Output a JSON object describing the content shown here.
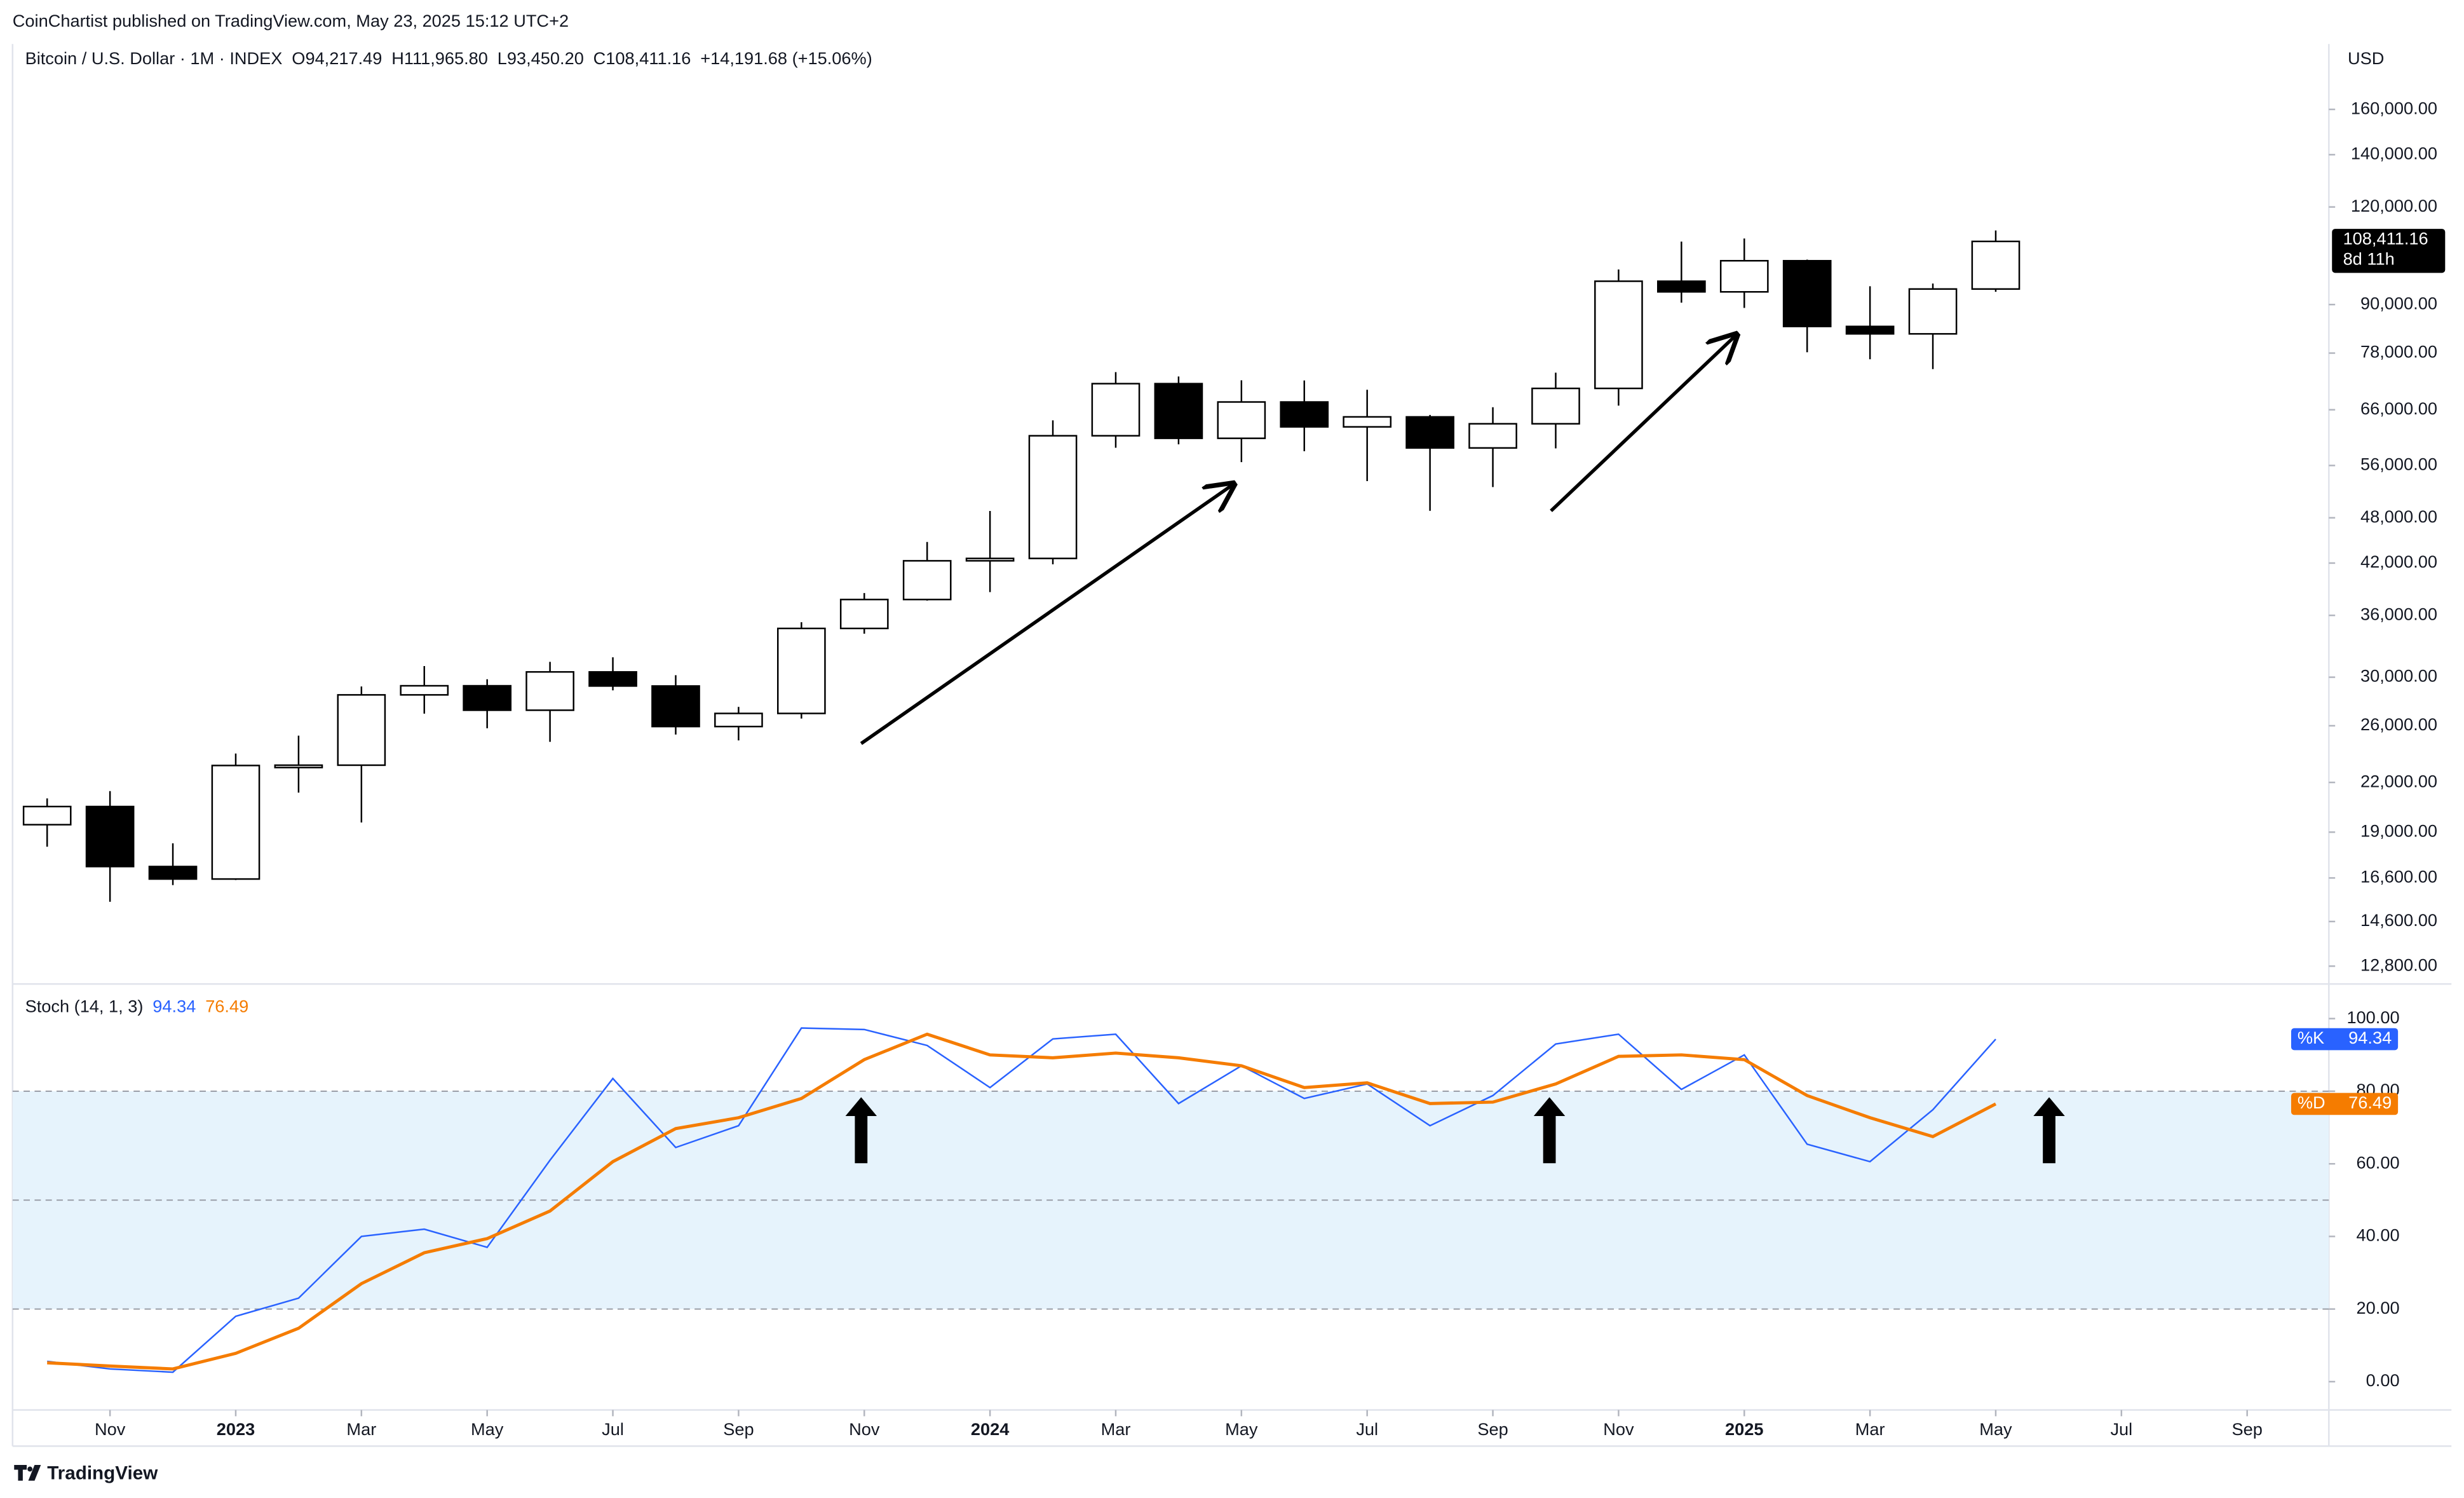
{
  "header": {
    "publisher": "CoinChartist published on TradingView.com, May 23, 2025 15:12 UTC+2",
    "symbol": "Bitcoin / U.S. Dollar · 1M · INDEX",
    "ohlc": [
      "O94,217.49",
      "H111,965.80",
      "L93,450.20",
      "C108,411.16",
      "+14,191.68 (+15.06%)"
    ],
    "currency": "USD",
    "brand": "TradingView"
  },
  "chart_data": [
    {
      "type": "candlestick",
      "log_scale": true,
      "up_color": "#ffffff",
      "down_color": "#000000",
      "x": [
        "2022-10",
        "2022-11",
        "2022-12",
        "2023-01",
        "2023-02",
        "2023-03",
        "2023-04",
        "2023-05",
        "2023-06",
        "2023-07",
        "2023-08",
        "2023-09",
        "2023-10",
        "2023-11",
        "2023-12",
        "2024-01",
        "2024-02",
        "2024-03",
        "2024-04",
        "2024-05",
        "2024-06",
        "2024-07",
        "2024-08",
        "2024-09",
        "2024-10",
        "2024-11",
        "2024-12",
        "2025-01",
        "2025-02",
        "2025-03",
        "2025-04",
        "2025-05"
      ],
      "open": [
        19423,
        20490,
        17168,
        16548,
        23125,
        23147,
        28478,
        29252,
        27219,
        30472,
        29232,
        25940,
        26962,
        34639,
        37723,
        42283,
        42580,
        61130,
        71280,
        60672,
        67530,
        62754,
        64628,
        58973,
        63327,
        70292,
        96407,
        93429,
        102405,
        84374,
        82550,
        94217.49
      ],
      "high": [
        20988,
        21446,
        18387,
        23955,
        25250,
        29190,
        31000,
        29820,
        31390,
        31814,
        30176,
        27488,
        35280,
        38450,
        44700,
        48970,
        63970,
        73750,
        72797,
        71980,
        71958,
        70016,
        65000,
        66500,
        73620,
        99800,
        108353,
        109356,
        102750,
        95000,
        95750,
        111965.8
      ],
      "low": [
        18200,
        15476,
        16256,
        16499,
        21351,
        19549,
        26942,
        25811,
        24797,
        28860,
        25333,
        24901,
        26558,
        34100,
        37600,
        38555,
        41850,
        59005,
        59600,
        56552,
        58402,
        53485,
        49000,
        52550,
        58900,
        66800,
        90500,
        89100,
        78200,
        76600,
        74400,
        93450.2
      ],
      "close": [
        20490,
        17168,
        16548,
        23125,
        23147,
        28478,
        29252,
        27219,
        30472,
        29232,
        25940,
        26962,
        34639,
        37723,
        42283,
        42580,
        61130,
        71280,
        60672,
        67530,
        62754,
        64628,
        58973,
        63327,
        70292,
        96407,
        93429,
        102405,
        84374,
        82550,
        94219.48,
        108411.16
      ],
      "current_price_label": "108,411.16",
      "countdown": "8d 11h",
      "ylim": [
        12200,
        194000
      ],
      "yticks": [
        {
          "value": 12800,
          "label": "12,800.00"
        },
        {
          "value": 14600,
          "label": "14,600.00"
        },
        {
          "value": 16600,
          "label": "16,600.00"
        },
        {
          "value": 19000,
          "label": "19,000.00"
        },
        {
          "value": 22000,
          "label": "22,000.00"
        },
        {
          "value": 26000,
          "label": "26,000.00"
        },
        {
          "value": 30000,
          "label": "30,000.00"
        },
        {
          "value": 36000,
          "label": "36,000.00"
        },
        {
          "value": 42000,
          "label": "42,000.00"
        },
        {
          "value": 48000,
          "label": "48,000.00"
        },
        {
          "value": 56000,
          "label": "56,000.00"
        },
        {
          "value": 66000,
          "label": "66,000.00"
        },
        {
          "value": 78000,
          "label": "78,000.00"
        },
        {
          "value": 90000,
          "label": "90,000.00"
        },
        {
          "value": 120000,
          "label": "120,000.00"
        },
        {
          "value": 140000,
          "label": "140,000.00"
        },
        {
          "value": 160000,
          "label": "160,000.00"
        }
      ]
    },
    {
      "type": "line",
      "title": "Stoch (14, 1, 3)",
      "x": [
        "2022-10",
        "2022-11",
        "2022-12",
        "2023-01",
        "2023-02",
        "2023-03",
        "2023-04",
        "2023-05",
        "2023-06",
        "2023-07",
        "2023-08",
        "2023-09",
        "2023-10",
        "2023-11",
        "2023-12",
        "2024-01",
        "2024-02",
        "2024-03",
        "2024-04",
        "2024-05",
        "2024-06",
        "2024-07",
        "2024-08",
        "2024-09",
        "2024-10",
        "2024-11",
        "2024-12",
        "2025-01",
        "2025-02",
        "2025-03",
        "2025-04",
        "2025-05"
      ],
      "series": [
        {
          "name": "%K",
          "color": "#2962ff",
          "values": [
            5.6,
            3.5,
            2.6,
            18,
            23,
            40,
            42,
            37,
            61,
            83.5,
            64.5,
            70.5,
            97.4,
            97,
            92.6,
            81,
            94.4,
            95.7,
            76.6,
            87,
            78,
            82,
            70.5,
            78.8,
            93,
            95.7,
            80.5,
            90,
            65.4,
            60.6,
            74.9,
            94.34
          ]
        },
        {
          "name": "%D",
          "color": "#f57c00",
          "values": [
            5.2,
            4.3,
            3.5,
            7.8,
            14.7,
            27,
            35.5,
            39.4,
            47,
            60.6,
            69.7,
            72.7,
            78,
            88.7,
            95.7,
            90,
            89.2,
            90.5,
            89.2,
            87,
            81,
            82.3,
            76.6,
            77,
            82,
            89.6,
            90,
            88.7,
            78.8,
            72.7,
            67.5,
            76.49
          ]
        }
      ],
      "bands": [
        20,
        80
      ],
      "midline": 50,
      "band_color": "#e6f3fc",
      "ylim": [
        -7.8,
        107.8
      ],
      "yticks": [
        {
          "value": 0,
          "label": "0.00"
        },
        {
          "value": 20,
          "label": "20.00"
        },
        {
          "value": 40,
          "label": "40.00"
        },
        {
          "value": 60,
          "label": "60.00"
        },
        {
          "value": 80,
          "label": "80.00"
        },
        {
          "value": 100,
          "label": "100.00"
        }
      ],
      "xlim": [
        "2022-09",
        "2025-11"
      ],
      "xticks": [
        {
          "value": "2022-11",
          "label": "Nov"
        },
        {
          "value": "2023-01",
          "label": "2023"
        },
        {
          "value": "2023-03",
          "label": "Mar"
        },
        {
          "value": "2023-05",
          "label": "May"
        },
        {
          "value": "2023-07",
          "label": "Jul"
        },
        {
          "value": "2023-09",
          "label": "Sep"
        },
        {
          "value": "2023-11",
          "label": "Nov"
        },
        {
          "value": "2024-01",
          "label": "2024"
        },
        {
          "value": "2024-03",
          "label": "Mar"
        },
        {
          "value": "2024-05",
          "label": "May"
        },
        {
          "value": "2024-07",
          "label": "Jul"
        },
        {
          "value": "2024-09",
          "label": "Sep"
        },
        {
          "value": "2024-11",
          "label": "Nov"
        },
        {
          "value": "2025-01",
          "label": "2025"
        },
        {
          "value": "2025-03",
          "label": "Mar"
        },
        {
          "value": "2025-05",
          "label": "May"
        },
        {
          "value": "2025-07",
          "label": "Jul"
        },
        {
          "value": "2025-09",
          "label": "Sep"
        }
      ]
    }
  ]
}
